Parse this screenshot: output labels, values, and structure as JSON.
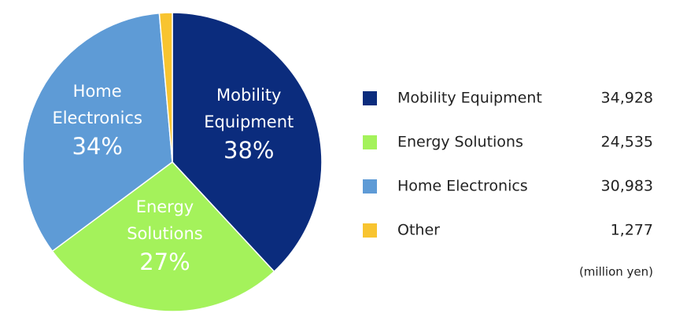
{
  "chart_data": {
    "type": "pie",
    "categories": [
      "Mobility Equipment",
      "Energy Solutions",
      "Home Electronics",
      "Other"
    ],
    "values": [
      34928,
      24535,
      30983,
      1277
    ],
    "value_labels": [
      "34,928",
      "24,535",
      "30,983",
      "1,277"
    ],
    "percent_labels": [
      "38%",
      "27%",
      "34%",
      null
    ],
    "colors": [
      "#0b2c7d",
      "#a4f25b",
      "#5e9bd6",
      "#f8c430"
    ],
    "unit_note": "(million yen)"
  }
}
